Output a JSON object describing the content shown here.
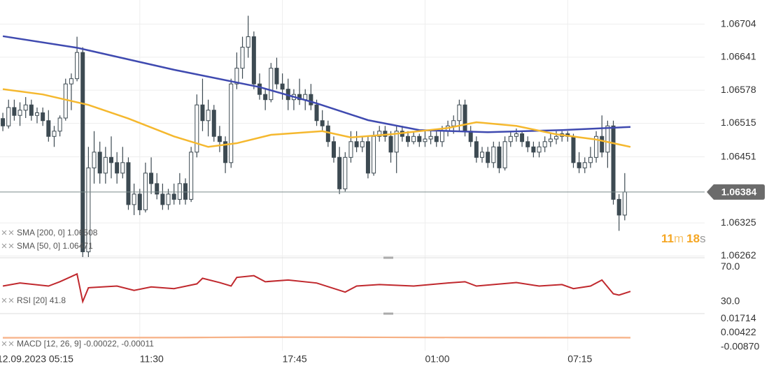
{
  "chart_data": [
    {
      "type": "candlestick",
      "color_up": "#ffffff",
      "color_down": "#3d4a52",
      "outline": "#3d4a52",
      "xlim": [
        -0.5,
        123
      ],
      "ylim": [
        1.0626,
        1.0675
      ],
      "yticks": [
        1.06262,
        1.06325,
        1.06451,
        1.06515,
        1.06578,
        1.06641,
        1.06704
      ],
      "grid": true,
      "current_price": 1.06384,
      "timer": {
        "minutes": 11,
        "minutes_unit": "m",
        "seconds": 18,
        "seconds_unit": "s"
      },
      "open": [
        1.06524,
        1.0651,
        1.06545,
        1.0653,
        1.0654,
        1.0655,
        1.0653,
        1.06535,
        1.0652,
        1.0649,
        1.065,
        1.06525,
        1.0659,
        1.066,
        1.0665,
        1.0627,
        1.0643,
        1.0646,
        1.0642,
        1.0645,
        1.0644,
        1.0642,
        1.0644,
        1.0636,
        1.0638,
        1.0635,
        1.0642,
        1.064,
        1.0638,
        1.0636,
        1.0638,
        1.0637,
        1.064,
        1.0637,
        1.0646,
        1.0655,
        1.0652,
        1.0654,
        1.0649,
        1.0648,
        1.0644,
        1.0659,
        1.0662,
        1.0666,
        1.0668,
        1.0659,
        1.0657,
        1.0656,
        1.0662,
        1.0659,
        1.0658,
        1.0656,
        1.0657,
        1.0656,
        1.0657,
        1.0655,
        1.0652,
        1.0651,
        1.0648,
        1.0645,
        1.0639,
        1.0645,
        1.0648,
        1.0647,
        1.0648,
        1.0642,
        1.0649,
        1.065,
        1.0649,
        1.0646,
        1.065,
        1.0649,
        1.0648,
        1.0649,
        1.0648,
        1.06485,
        1.0649,
        1.0648,
        1.065,
        1.0651,
        1.0652,
        1.0655,
        1.065,
        1.0648,
        1.0645,
        1.0646,
        1.0644,
        1.0647,
        1.0643,
        1.0648,
        1.0649,
        1.06495,
        1.0648,
        1.0647,
        1.0646,
        1.0647,
        1.0648,
        1.06485,
        1.0649,
        1.06495,
        1.0649,
        1.0644,
        1.0643,
        1.0644,
        1.0645,
        1.0649,
        1.0646,
        1.0651,
        1.0637,
        1.0634
      ],
      "high": [
        1.06535,
        1.0656,
        1.0656,
        1.06555,
        1.06565,
        1.0656,
        1.06545,
        1.06545,
        1.0654,
        1.0651,
        1.0653,
        1.066,
        1.0661,
        1.0668,
        1.0666,
        1.0647,
        1.065,
        1.0648,
        1.0647,
        1.0649,
        1.0646,
        1.0647,
        1.0645,
        1.064,
        1.0639,
        1.0644,
        1.0645,
        1.0642,
        1.064,
        1.0639,
        1.064,
        1.0642,
        1.0641,
        1.0647,
        1.0657,
        1.066,
        1.0656,
        1.0655,
        1.0651,
        1.0649,
        1.066,
        1.0665,
        1.0668,
        1.0672,
        1.0669,
        1.0661,
        1.0658,
        1.0663,
        1.0664,
        1.0661,
        1.066,
        1.0658,
        1.066,
        1.0658,
        1.0659,
        1.0656,
        1.0654,
        1.0652,
        1.0649,
        1.0647,
        1.0646,
        1.065,
        1.065,
        1.0649,
        1.0649,
        1.065,
        1.0651,
        1.0651,
        1.065,
        1.0651,
        1.0651,
        1.065,
        1.065,
        1.06495,
        1.065,
        1.065,
        1.065,
        1.0651,
        1.0652,
        1.0653,
        1.0656,
        1.0656,
        1.0651,
        1.0649,
        1.0647,
        1.0647,
        1.0648,
        1.0648,
        1.0649,
        1.065,
        1.06505,
        1.065,
        1.0649,
        1.0648,
        1.0648,
        1.0649,
        1.06495,
        1.065,
        1.065,
        1.065,
        1.06495,
        1.0646,
        1.0645,
        1.0647,
        1.065,
        1.0653,
        1.0652,
        1.0652,
        1.0638,
        1.0642
      ],
      "low": [
        1.065,
        1.06505,
        1.0652,
        1.0651,
        1.06525,
        1.0652,
        1.06515,
        1.0651,
        1.0648,
        1.0647,
        1.0649,
        1.0652,
        1.0654,
        1.06595,
        1.0625,
        1.0626,
        1.064,
        1.064,
        1.064,
        1.0641,
        1.064,
        1.0641,
        1.0635,
        1.0634,
        1.0634,
        1.06345,
        1.0638,
        1.0637,
        1.0635,
        1.0635,
        1.0636,
        1.0636,
        1.0636,
        1.06365,
        1.0645,
        1.065,
        1.0649,
        1.0648,
        1.0646,
        1.0642,
        1.0643,
        1.0658,
        1.066,
        1.0664,
        1.0658,
        1.0656,
        1.0654,
        1.06555,
        1.0658,
        1.0656,
        1.0654,
        1.0654,
        1.0655,
        1.0654,
        1.0654,
        1.0651,
        1.065,
        1.0647,
        1.0644,
        1.0638,
        1.06385,
        1.0644,
        1.0646,
        1.0646,
        1.0641,
        1.06415,
        1.0648,
        1.0648,
        1.0644,
        1.0642,
        1.0648,
        1.0647,
        1.06475,
        1.0647,
        1.0647,
        1.06475,
        1.0647,
        1.0647,
        1.0649,
        1.06495,
        1.065,
        1.0649,
        1.0647,
        1.0644,
        1.0644,
        1.0643,
        1.0643,
        1.0642,
        1.06425,
        1.0647,
        1.0648,
        1.0647,
        1.0646,
        1.0645,
        1.0645,
        1.0646,
        1.0647,
        1.06475,
        1.0648,
        1.0648,
        1.0643,
        1.0642,
        1.0642,
        1.0643,
        1.0644,
        1.0645,
        1.0643,
        1.0636,
        1.0631,
        1.0633
      ],
      "close": [
        1.0651,
        1.06545,
        1.0653,
        1.0654,
        1.0655,
        1.0653,
        1.06535,
        1.0652,
        1.0649,
        1.065,
        1.06525,
        1.0659,
        1.066,
        1.0665,
        1.0627,
        1.0643,
        1.0646,
        1.0642,
        1.0645,
        1.0644,
        1.0642,
        1.0644,
        1.0636,
        1.0638,
        1.0635,
        1.0642,
        1.064,
        1.0638,
        1.0636,
        1.0638,
        1.0637,
        1.064,
        1.0637,
        1.0646,
        1.0655,
        1.0652,
        1.0654,
        1.0649,
        1.0648,
        1.0644,
        1.0659,
        1.0662,
        1.0666,
        1.0668,
        1.0659,
        1.0657,
        1.0656,
        1.0662,
        1.0659,
        1.0658,
        1.0656,
        1.0657,
        1.0656,
        1.0657,
        1.0655,
        1.0652,
        1.0651,
        1.0648,
        1.0645,
        1.0639,
        1.0645,
        1.0648,
        1.0647,
        1.0648,
        1.0642,
        1.0649,
        1.065,
        1.0649,
        1.0646,
        1.065,
        1.0649,
        1.0648,
        1.0649,
        1.0648,
        1.06485,
        1.0649,
        1.0648,
        1.065,
        1.0651,
        1.0652,
        1.0655,
        1.065,
        1.0648,
        1.0645,
        1.0646,
        1.0644,
        1.0647,
        1.0643,
        1.0648,
        1.0649,
        1.06495,
        1.0648,
        1.0647,
        1.0646,
        1.0647,
        1.0648,
        1.06485,
        1.0649,
        1.06495,
        1.0649,
        1.0644,
        1.0643,
        1.0644,
        1.0645,
        1.0649,
        1.0646,
        1.0651,
        1.0637,
        1.0634,
        1.06384
      ],
      "series": [
        {
          "name": "SMA [200, 0] 1.06508",
          "color": "#3f4ab0",
          "x": [
            0,
            13,
            30,
            45,
            55,
            64,
            73,
            85,
            98,
            110
          ],
          "values": [
            1.06681,
            1.06659,
            1.06617,
            1.06584,
            1.06553,
            1.06521,
            1.06502,
            1.06498,
            1.06502,
            1.06508
          ]
        },
        {
          "name": "SMA [50, 0] 1.06471",
          "color": "#f5b82e",
          "x": [
            0,
            7,
            15,
            22,
            30,
            36,
            41,
            47,
            56,
            61,
            68,
            78,
            83,
            90,
            97,
            104,
            110
          ],
          "values": [
            1.0658,
            1.0657,
            1.0655,
            1.06524,
            1.0649,
            1.0647,
            1.06477,
            1.06493,
            1.065,
            1.06488,
            1.06494,
            1.06506,
            1.06517,
            1.0651,
            1.06494,
            1.06484,
            1.0647
          ]
        }
      ]
    },
    {
      "type": "line",
      "xlim": [
        -0.5,
        123
      ],
      "ylim": [
        16,
        80
      ],
      "yticks": [
        {
          "value": 30,
          "label": "30.0"
        },
        {
          "value": 70,
          "label": "70.0"
        }
      ],
      "series": [
        {
          "name": "RSI [20] 41.8",
          "color": "#c0282d",
          "x": [
            0,
            3,
            8,
            10,
            12,
            13,
            14,
            15,
            20,
            23,
            26,
            30,
            34,
            35,
            38,
            40,
            41,
            44,
            46,
            50,
            55,
            60,
            62,
            66,
            72,
            78,
            81,
            83,
            86,
            90,
            94,
            98,
            100,
            103,
            105,
            107,
            108,
            110
          ],
          "values": [
            48,
            51.5,
            48,
            53,
            59,
            62,
            30,
            46,
            48,
            43,
            47,
            45,
            50.5,
            57,
            52,
            48,
            58,
            60,
            53,
            55,
            51.5,
            41,
            48,
            49.7,
            48,
            51.5,
            53,
            48,
            49.7,
            52,
            48,
            49.7,
            45,
            48,
            55,
            39,
            37.5,
            41.8
          ]
        }
      ]
    },
    {
      "type": "line",
      "xlim": [
        -0.5,
        123
      ],
      "ylim": [
        -0.012,
        0.021
      ],
      "yticks": [
        {
          "value": -0.0087,
          "label": "-0.00870"
        },
        0.00422,
        0.01714
      ],
      "legend": "MACD [12, 26, 9] -0.00022, -0.00011",
      "xticks": [
        {
          "value": -1,
          "label": "12.09.2023  05:15"
        },
        {
          "value": 24,
          "label": "11:30"
        },
        {
          "value": 49,
          "label": "17:45"
        },
        {
          "value": 74,
          "label": "01:00"
        },
        {
          "value": 99,
          "label": "07:15"
        }
      ],
      "series": [
        {
          "color": "#f08050",
          "x": [
            0,
            30,
            45,
            60,
            80,
            110
          ],
          "values": [
            -0.0003,
            -0.0001,
            0.0003,
            0.0002,
            -0.0001,
            -0.00022
          ]
        },
        {
          "color": "#f7b58a",
          "x": [
            0,
            30,
            45,
            60,
            80,
            110
          ],
          "values": [
            -0.0002,
            -0.0002,
            0.0001,
            0.0002,
            0,
            -0.00011
          ]
        }
      ]
    }
  ]
}
